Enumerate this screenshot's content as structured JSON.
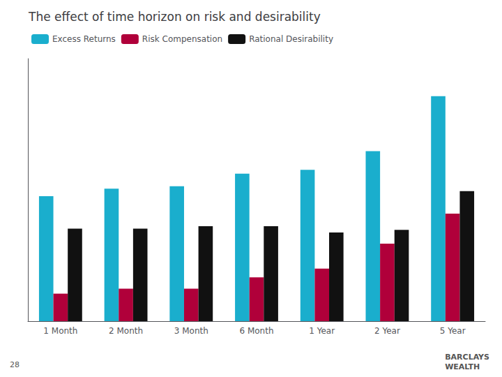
{
  "chart_data": {
    "type": "bar",
    "title": "The effect of time horizon on risk and desirability",
    "categories": [
      "1 Month",
      "2 Month",
      "3 Month",
      "6 Month",
      "1 Year",
      "2 Year",
      "5 Year"
    ],
    "series": [
      {
        "name": "Excess Returns",
        "color": "#1AAECD",
        "values": [
          5.0,
          5.3,
          5.4,
          5.9,
          6.05,
          6.8,
          9.0
        ]
      },
      {
        "name": "Risk Compensation",
        "color": "#B0003A",
        "values": [
          1.1,
          1.3,
          1.3,
          1.75,
          2.1,
          3.1,
          4.3
        ]
      },
      {
        "name": "Rational Desirability",
        "color": "#111111",
        "values": [
          3.7,
          3.7,
          3.8,
          3.8,
          3.55,
          3.65,
          5.2
        ]
      }
    ],
    "ylim": [
      0,
      10.5
    ],
    "tick_labels": "x",
    "grid": false,
    "legend": "upper left",
    "annotations": [
      "28",
      "BARCLAYS\nWEALTH"
    ]
  }
}
